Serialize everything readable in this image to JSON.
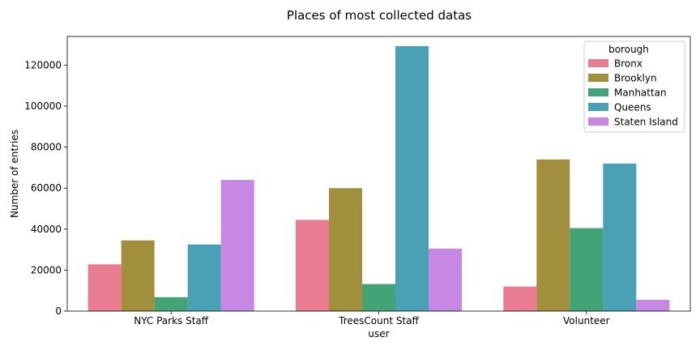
{
  "chart_data": {
    "type": "bar",
    "title": "Places of most collected datas",
    "xlabel": "user",
    "ylabel": "Number of entries",
    "categories": [
      "NYC Parks Staff",
      "TreesCount Staff",
      "Volunteer"
    ],
    "ylim": [
      0,
      134000
    ],
    "yticks": [
      0,
      20000,
      40000,
      60000,
      80000,
      100000,
      120000
    ],
    "grid": false,
    "legend": {
      "title": "borough",
      "placement": "top-right"
    },
    "series": [
      {
        "name": "Bronx",
        "color": "#e87c91",
        "values": [
          22800,
          44500,
          12000
        ]
      },
      {
        "name": "Brooklyn",
        "color": "#a18f3d",
        "values": [
          34500,
          60000,
          74000
        ]
      },
      {
        "name": "Manhattan",
        "color": "#44a277",
        "values": [
          6800,
          13200,
          40500
        ]
      },
      {
        "name": "Queens",
        "color": "#4aa0b5",
        "values": [
          32500,
          129300,
          72000
        ]
      },
      {
        "name": "Staten Island",
        "color": "#c788e3",
        "values": [
          64000,
          30500,
          5500
        ]
      }
    ]
  }
}
